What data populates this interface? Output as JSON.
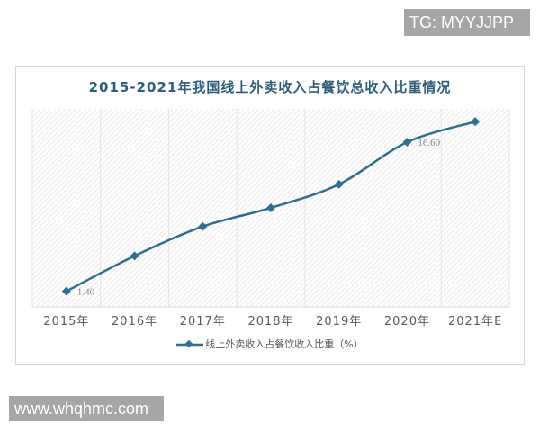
{
  "watermarks": {
    "top_right": "TG: MYYJJPP",
    "bottom_left": "www.whqhmc.com"
  },
  "colors": {
    "line": "#2e6e8e",
    "title": "#2e5e76",
    "axis_text": "#595959",
    "watermark_bg": "#a6a6a6"
  },
  "chart_data": {
    "type": "line",
    "title": "2015-2021年我国线上外卖收入占餐饮总收入比重情况",
    "xlabel": "",
    "ylabel": "",
    "categories": [
      "2015年",
      "2016年",
      "2017年",
      "2018年",
      "2019年",
      "2020年",
      "2021年E"
    ],
    "series": [
      {
        "name": "线上外卖收入占餐饮收入比重（%）",
        "values": [
          1.4,
          5.0,
          8.0,
          9.9,
          12.3,
          16.6,
          18.7
        ]
      }
    ],
    "data_labels": [
      {
        "category": "2015年",
        "text": "1.40"
      },
      {
        "category": "2020年",
        "text": "16.60"
      }
    ],
    "ylim": [
      -0.2,
      20.0
    ],
    "grid": "vertical category lines",
    "legend_position": "bottom",
    "y_axis_visible": false
  }
}
